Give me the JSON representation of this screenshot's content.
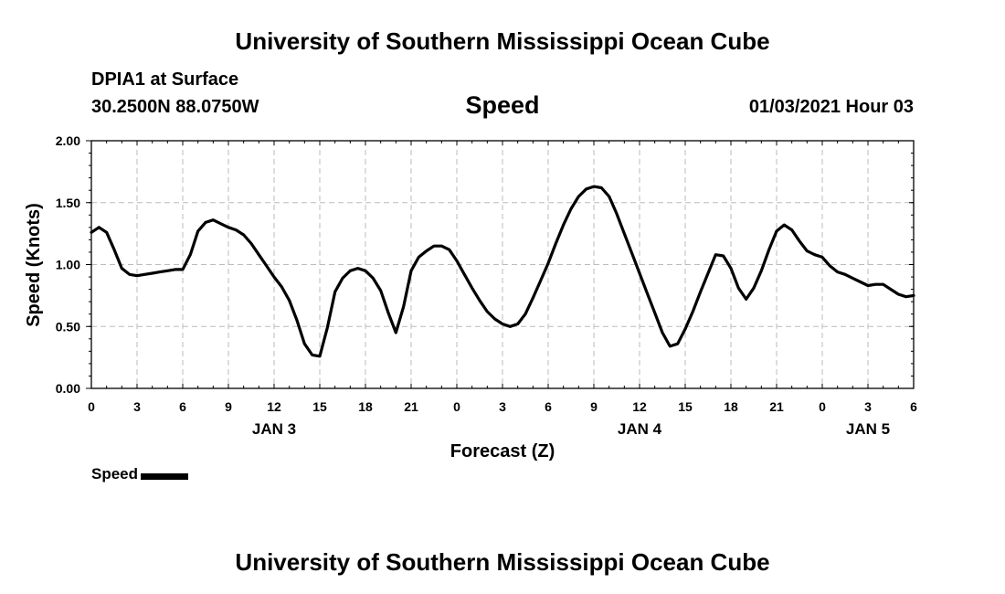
{
  "header": {
    "title": "University of Southern Mississippi Ocean Cube",
    "station": "DPIA1 at Surface",
    "coords": "30.2500N 88.0750W",
    "variable": "Speed",
    "run_time": "01/03/2021 Hour 03"
  },
  "footer": {
    "title": "University of Southern Mississippi Ocean Cube"
  },
  "chart_data": {
    "type": "line",
    "title": "Speed",
    "xlabel": "Forecast (Z)",
    "ylabel": "Speed (Knots)",
    "xlim": [
      0,
      54
    ],
    "ylim": [
      0,
      2
    ],
    "y_ticks": [
      0,
      0.5,
      1.0,
      1.5,
      2.0
    ],
    "y_tick_labels": [
      "0.00",
      "0.50",
      "1.00",
      "1.50",
      "2.00"
    ],
    "x_ticks": [
      0,
      3,
      6,
      9,
      12,
      15,
      18,
      21,
      24,
      27,
      30,
      33,
      36,
      39,
      42,
      45,
      48,
      51,
      54
    ],
    "x_tick_labels": [
      "0",
      "3",
      "6",
      "9",
      "12",
      "15",
      "18",
      "21",
      "0",
      "3",
      "6",
      "9",
      "12",
      "15",
      "18",
      "21",
      "0",
      "3",
      "6"
    ],
    "date_labels": [
      {
        "text": "JAN 3",
        "x": 12
      },
      {
        "text": "JAN 4",
        "x": 36
      },
      {
        "text": "JAN 5",
        "x": 51
      }
    ],
    "grid": true,
    "legend": "bottom-left",
    "color": "#000000",
    "series": [
      {
        "name": "Speed",
        "x": [
          0,
          0.5,
          1,
          1.5,
          2,
          2.5,
          3,
          3.5,
          4,
          4.5,
          5,
          5.5,
          6,
          6.5,
          7,
          7.5,
          8,
          8.5,
          9,
          9.5,
          10,
          10.5,
          11,
          11.5,
          12,
          12.5,
          13,
          13.5,
          14,
          14.5,
          15,
          15.5,
          16,
          16.5,
          17,
          17.5,
          18,
          18.5,
          19,
          19.5,
          20,
          20.5,
          21,
          21.5,
          22,
          22.5,
          23,
          23.5,
          24,
          24.5,
          25,
          25.5,
          26,
          26.5,
          27,
          27.5,
          28,
          28.5,
          29,
          29.5,
          30,
          30.5,
          31,
          31.5,
          32,
          32.5,
          33,
          33.5,
          34,
          34.5,
          35,
          35.5,
          36,
          36.5,
          37,
          37.5,
          38,
          38.5,
          39,
          39.5,
          40,
          40.5,
          41,
          41.5,
          42,
          42.5,
          43,
          43.5,
          44,
          44.5,
          45,
          45.5,
          46,
          46.5,
          47,
          47.5,
          48,
          48.5,
          49,
          49.5,
          50,
          50.5,
          51,
          51.5,
          52,
          52.5,
          53,
          53.5,
          54
        ],
        "values": [
          1.26,
          1.3,
          1.26,
          1.12,
          0.97,
          0.92,
          0.91,
          0.92,
          0.93,
          0.94,
          0.95,
          0.96,
          0.96,
          1.08,
          1.27,
          1.34,
          1.36,
          1.33,
          1.3,
          1.28,
          1.24,
          1.17,
          1.08,
          0.99,
          0.9,
          0.82,
          0.71,
          0.55,
          0.36,
          0.27,
          0.26,
          0.49,
          0.78,
          0.89,
          0.95,
          0.97,
          0.95,
          0.89,
          0.79,
          0.61,
          0.45,
          0.66,
          0.95,
          1.06,
          1.11,
          1.15,
          1.15,
          1.12,
          1.03,
          0.92,
          0.81,
          0.71,
          0.62,
          0.56,
          0.52,
          0.5,
          0.52,
          0.6,
          0.73,
          0.87,
          1.01,
          1.17,
          1.32,
          1.45,
          1.55,
          1.61,
          1.63,
          1.62,
          1.55,
          1.41,
          1.25,
          1.09,
          0.93,
          0.77,
          0.61,
          0.45,
          0.34,
          0.36,
          0.48,
          0.62,
          0.78,
          0.93,
          1.08,
          1.07,
          0.97,
          0.81,
          0.72,
          0.81,
          0.95,
          1.12,
          1.27,
          1.32,
          1.28,
          1.19,
          1.11,
          1.08,
          1.06,
          0.99,
          0.94,
          0.92,
          0.89,
          0.86,
          0.83,
          0.84,
          0.84,
          0.8,
          0.76,
          0.74,
          0.75
        ]
      }
    ]
  },
  "legend": {
    "label": "Speed"
  }
}
